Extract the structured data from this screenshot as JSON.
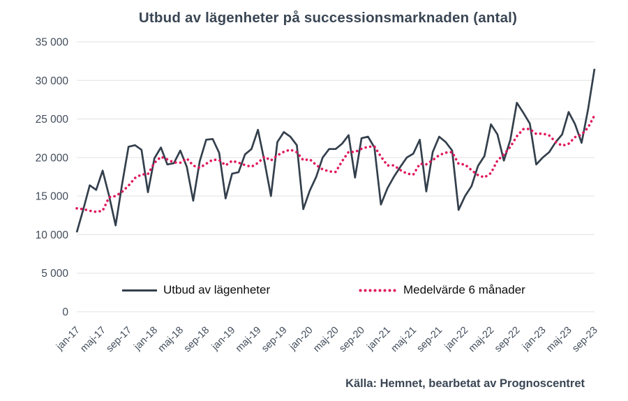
{
  "page": {
    "title": "Utbud av lägenheter på successionsmarknaden (antal)",
    "source": "Källa: Hemnet, bearbetat av Prognoscentret"
  },
  "legend": {
    "items": [
      {
        "label": "Utbud av lägenheter"
      },
      {
        "label": "Medelvärde 6 månader"
      }
    ]
  },
  "chart_data": {
    "type": "line",
    "title": "Utbud av lägenheter på successionsmarknaden (antal)",
    "xlabel": "",
    "ylabel": "",
    "ylim": [
      0,
      35000
    ],
    "ytick_step": 5000,
    "ytick_labels": [
      "0",
      "5 000",
      "10 000",
      "15 000",
      "20 000",
      "25 000",
      "30 000",
      "35 000"
    ],
    "xtick_every": 4,
    "grid": "horizontal",
    "legend_position": "bottom-inside",
    "x": [
      "jan-17",
      "feb-17",
      "mar-17",
      "apr-17",
      "maj-17",
      "jun-17",
      "jul-17",
      "aug-17",
      "sep-17",
      "okt-17",
      "nov-17",
      "dec-17",
      "jan-18",
      "feb-18",
      "mar-18",
      "apr-18",
      "maj-18",
      "jun-18",
      "jul-18",
      "aug-18",
      "sep-18",
      "okt-18",
      "nov-18",
      "dec-18",
      "jan-19",
      "feb-19",
      "mar-19",
      "apr-19",
      "maj-19",
      "jun-19",
      "jul-19",
      "aug-19",
      "sep-19",
      "okt-19",
      "nov-19",
      "dec-19",
      "jan-20",
      "feb-20",
      "mar-20",
      "apr-20",
      "maj-20",
      "jun-20",
      "jul-20",
      "aug-20",
      "sep-20",
      "okt-20",
      "nov-20",
      "dec-20",
      "jan-21",
      "feb-21",
      "mar-21",
      "apr-21",
      "maj-21",
      "jun-21",
      "jul-21",
      "aug-21",
      "sep-21",
      "okt-21",
      "nov-21",
      "dec-21",
      "jan-22",
      "feb-22",
      "mar-22",
      "apr-22",
      "maj-22",
      "jun-22",
      "jul-22",
      "aug-22",
      "sep-22",
      "okt-22",
      "nov-22",
      "dec-22",
      "jan-23",
      "feb-23",
      "mar-23",
      "apr-23",
      "maj-23",
      "jun-23",
      "jul-23",
      "aug-23",
      "sep-23"
    ],
    "series": [
      {
        "name": "Utbud av lägenheter",
        "style": "solid",
        "color": "#333f4c",
        "values": [
          10300,
          13250,
          16400,
          15800,
          18300,
          15000,
          11200,
          16500,
          21400,
          21600,
          21000,
          15500,
          19900,
          21300,
          19100,
          19250,
          20900,
          18800,
          14400,
          19500,
          22300,
          22400,
          20600,
          14700,
          17900,
          18100,
          20400,
          21100,
          23600,
          19500,
          15000,
          22000,
          23300,
          22700,
          21600,
          13300,
          15700,
          17500,
          20000,
          21100,
          21100,
          21800,
          22900,
          17400,
          22500,
          22700,
          21300,
          13900,
          16000,
          17500,
          18800,
          20000,
          20500,
          22300,
          15600,
          20700,
          22700,
          22000,
          20900,
          13200,
          15000,
          16300,
          18900,
          20200,
          24300,
          23000,
          19600,
          22300,
          27100,
          25800,
          24400,
          19100,
          20000,
          20700,
          22000,
          23000,
          25900,
          24300,
          21900,
          26200,
          31500
        ]
      },
      {
        "name": "Medelvärde 6 månader",
        "style": "dotted",
        "color": "#e0185e",
        "values": [
          13400,
          13300,
          13100,
          12950,
          13100,
          14850,
          15000,
          15550,
          16350,
          17350,
          17800,
          17850,
          19300,
          20100,
          19750,
          19350,
          19330,
          19880,
          18960,
          18660,
          19190,
          19720,
          19670,
          18980,
          19570,
          19330,
          19020,
          18800,
          19300,
          20100,
          19620,
          20270,
          20750,
          21020,
          20680,
          19650,
          19770,
          19020,
          18470,
          18200,
          18120,
          19530,
          20730,
          20720,
          21130,
          21400,
          21430,
          20120,
          18970,
          18980,
          18370,
          17920,
          17780,
          19180,
          19120,
          19650,
          20300,
          20630,
          20700,
          19180,
          19080,
          18350,
          17720,
          17420,
          17980,
          19620,
          20380,
          21380,
          22750,
          23680,
          23700,
          23050,
          23120,
          22850,
          22000,
          21530,
          21780,
          22650,
          22970,
          23880,
          25470
        ]
      }
    ]
  },
  "colors": {
    "title_text": "#3a4654",
    "axis_text": "#414c5a",
    "gridline": "#e7e7e7",
    "solid_series": "#333f4c",
    "dotted_series": "#e0185e"
  }
}
